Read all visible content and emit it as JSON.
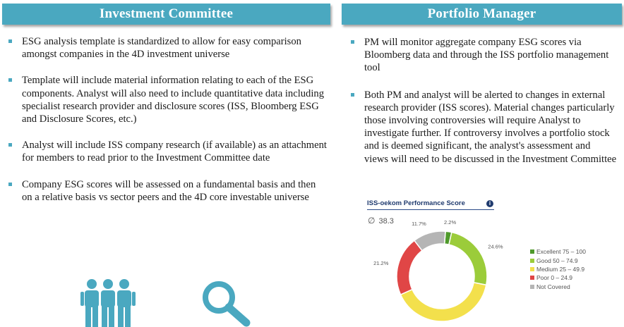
{
  "left": {
    "header": "Investment Committee",
    "bullets": [
      "ESG analysis template is standardized to allow for easy comparison amongst companies in the 4D investment universe",
      "Template will include material information relating to each of the ESG components. Analyst will also need to include quantitative data including specialist research provider and disclosure scores (ISS, Bloomberg ESG and Disclosure Scores, etc.)",
      "Analyst will include ISS company research (if available) as an attachment for members to read prior to the Investment Committee date",
      "Company ESG scores will be assessed on a fundamental basis and then on a relative basis vs sector peers and the 4D core investable universe"
    ],
    "icons": [
      "people-group-icon",
      "magnifier-icon"
    ]
  },
  "right": {
    "header": "Portfolio Manager",
    "bullets": [
      "PM will monitor aggregate company ESG scores via Bloomberg data and through the ISS portfolio management tool",
      "Both PM and analyst will be alerted to changes in external research provider (ISS scores). Material changes particularly those involving controversies will require Analyst to investigate further. If controversy involves a portfolio stock and is deemed significant, the analyst's assessment and views will need to be discussed in the Investment Committee"
    ]
  },
  "chart_data": {
    "type": "pie",
    "donut": true,
    "title": "ISS-oekom Performance Score",
    "average_symbol": "∅",
    "average": "38.3",
    "slices": [
      {
        "label": "Excellent 75 – 100",
        "value": 2.2,
        "value_label": "2.2%",
        "color": "#4f9a2b"
      },
      {
        "label": "Good 50 – 74.9",
        "value": 24.6,
        "value_label": "24.6%",
        "color": "#9bcc3a"
      },
      {
        "label": "Medium 25 – 49.9",
        "value": 40.2,
        "value_label": "40.2%",
        "color": "#f3e04c"
      },
      {
        "label": "Poor 0 – 24.9",
        "value": 21.2,
        "value_label": "21.2%",
        "color": "#e04646"
      },
      {
        "label": "Not Covered",
        "value": 11.7,
        "value_label": "11.7%",
        "color": "#b5b5b5"
      }
    ],
    "legend_position": "right"
  }
}
